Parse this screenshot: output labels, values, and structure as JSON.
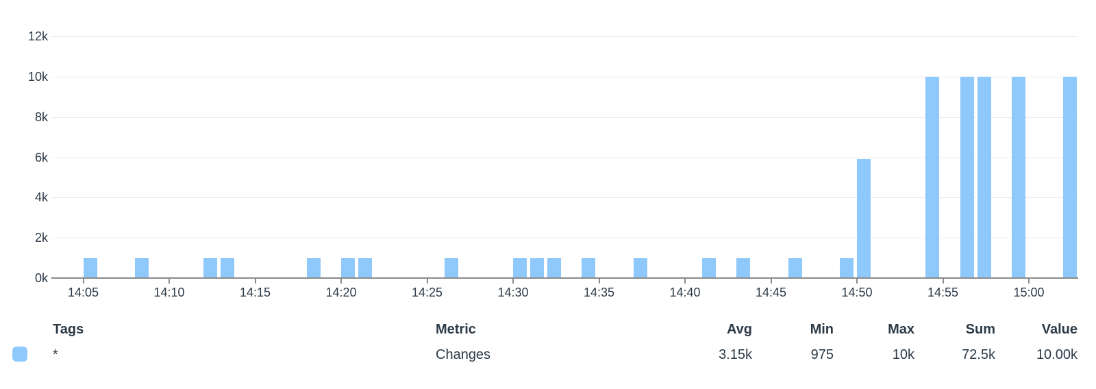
{
  "colors": {
    "bar": "#8FC8FB",
    "grid": "#ECECEC",
    "axis": "#8A8A8A",
    "text": "#2C3A47"
  },
  "chart_data": {
    "type": "bar",
    "title": "",
    "xlabel": "",
    "ylabel": "",
    "grid": true,
    "legend_position": "bottom-table",
    "ylim": [
      0,
      12000
    ],
    "x_range": [
      "14:03",
      "15:03"
    ],
    "y_tick_values": [
      0,
      2000,
      4000,
      6000,
      8000,
      10000,
      12000
    ],
    "y_tick_labels": [
      "0k",
      "2k",
      "4k",
      "6k",
      "8k",
      "10k",
      "12k"
    ],
    "x_ticks": [
      "14:05",
      "14:10",
      "14:15",
      "14:20",
      "14:25",
      "14:30",
      "14:35",
      "14:40",
      "14:45",
      "14:50",
      "14:55",
      "15:00"
    ],
    "series": [
      {
        "name": "Changes",
        "points": [
          {
            "x": "14:05",
            "y": 975
          },
          {
            "x": "14:08",
            "y": 975
          },
          {
            "x": "14:12",
            "y": 975
          },
          {
            "x": "14:13",
            "y": 975
          },
          {
            "x": "14:18",
            "y": 975
          },
          {
            "x": "14:20",
            "y": 975
          },
          {
            "x": "14:21",
            "y": 975
          },
          {
            "x": "14:26",
            "y": 975
          },
          {
            "x": "14:30",
            "y": 975
          },
          {
            "x": "14:31",
            "y": 975
          },
          {
            "x": "14:32",
            "y": 975
          },
          {
            "x": "14:34",
            "y": 975
          },
          {
            "x": "14:37",
            "y": 975
          },
          {
            "x": "14:41",
            "y": 975
          },
          {
            "x": "14:43",
            "y": 975
          },
          {
            "x": "14:46",
            "y": 975
          },
          {
            "x": "14:49",
            "y": 975
          },
          {
            "x": "14:50",
            "y": 5925
          },
          {
            "x": "14:54",
            "y": 10000
          },
          {
            "x": "14:56",
            "y": 10000
          },
          {
            "x": "14:57",
            "y": 10000
          },
          {
            "x": "14:59",
            "y": 10000
          },
          {
            "x": "15:02",
            "y": 10000
          }
        ]
      }
    ]
  },
  "legend": {
    "headers": {
      "tags": "Tags",
      "metric": "Metric",
      "avg": "Avg",
      "min": "Min",
      "max": "Max",
      "sum": "Sum",
      "value": "Value"
    },
    "row": {
      "tags": "*",
      "metric": "Changes",
      "avg": "3.15k",
      "min": "975",
      "max": "10k",
      "sum": "72.5k",
      "value": "10.00k"
    },
    "swatch_color": "#8FC8FB"
  }
}
